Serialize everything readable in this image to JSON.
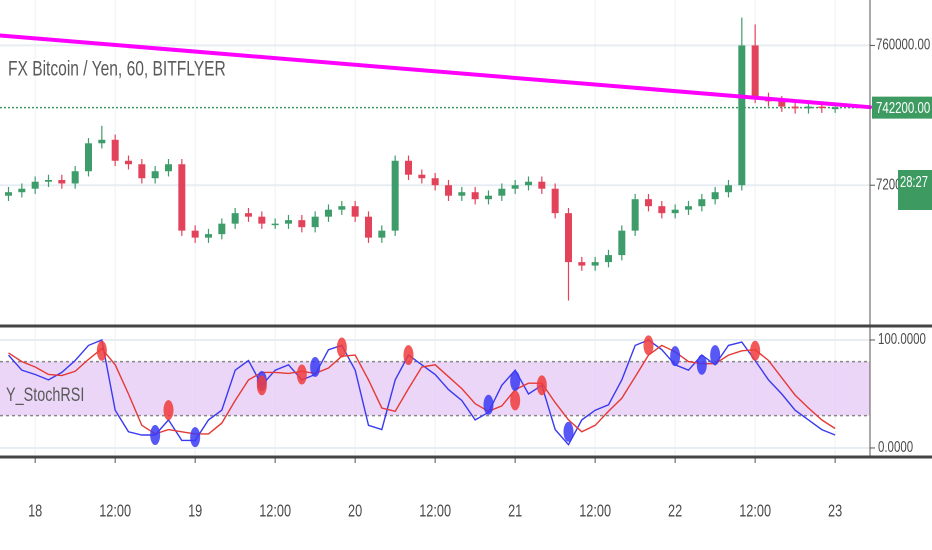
{
  "chart_data": [
    {
      "type": "candlestick",
      "title": "FX Bitcoin / Yen, 60, BITFLYER",
      "categories": [
        null,
        null,
        "18",
        null,
        null,
        null,
        null,
        null,
        "12:00",
        null,
        null,
        null,
        null,
        null,
        "19",
        null,
        null,
        null,
        null,
        null,
        "12:00",
        null,
        null,
        null,
        null,
        null,
        "20",
        null,
        null,
        null,
        null,
        null,
        "12:00",
        null,
        null,
        null,
        null,
        null,
        "21",
        null,
        null,
        null,
        null,
        null,
        "12:00",
        null,
        null,
        null,
        null,
        null,
        "22",
        null,
        null,
        null,
        null,
        null,
        "12:00",
        null,
        null,
        null,
        null,
        null,
        "23"
      ],
      "open": [
        717000,
        718000,
        719000,
        721000,
        721500,
        720500,
        724000,
        732000,
        733000,
        727000,
        726000,
        722000,
        724000,
        726000,
        707000,
        705000,
        706000,
        709000,
        712000,
        711000,
        709000,
        709000,
        710000,
        708000,
        711000,
        713000,
        714000,
        711000,
        705000,
        707000,
        727000,
        723000,
        722000,
        720000,
        717000,
        718000,
        716000,
        717000,
        719000,
        720000,
        721000,
        719000,
        712000,
        698000,
        697000,
        698000,
        700000,
        707000,
        716000,
        714000,
        712000,
        713000,
        714000,
        716000,
        718000,
        720000,
        760000,
        745000,
        744000,
        742500,
        742000,
        742500,
        742200
      ],
      "high": [
        719500,
        720500,
        722500,
        723000,
        723000,
        725500,
        733500,
        737000,
        734500,
        728500,
        727500,
        725500,
        727500,
        727500,
        708500,
        707500,
        710500,
        713500,
        713500,
        712500,
        710500,
        711500,
        711500,
        712500,
        714500,
        715500,
        715500,
        712500,
        708500,
        728500,
        728500,
        724500,
        723500,
        721500,
        719500,
        719500,
        718500,
        720500,
        721500,
        722500,
        722500,
        720500,
        713500,
        699500,
        699500,
        701500,
        708500,
        717500,
        717500,
        715500,
        714500,
        715500,
        717500,
        719500,
        721500,
        768000,
        766000,
        746500,
        745500,
        744000,
        744000,
        744000,
        743700
      ],
      "low": [
        715500,
        716500,
        717500,
        719500,
        719000,
        719000,
        722500,
        730500,
        725500,
        724500,
        720500,
        720500,
        722500,
        705500,
        703500,
        703500,
        704500,
        707500,
        709500,
        707500,
        707500,
        707500,
        706500,
        706500,
        709500,
        711500,
        709500,
        703500,
        703500,
        705500,
        721500,
        720500,
        718500,
        715500,
        715500,
        714500,
        714500,
        715500,
        717500,
        718500,
        717500,
        710500,
        687000,
        695500,
        695500,
        696500,
        698500,
        705500,
        712500,
        710500,
        710500,
        711500,
        712500,
        714500,
        716500,
        718500,
        743500,
        742500,
        741000,
        740500,
        740500,
        740700,
        740700
      ],
      "close": [
        718000,
        719000,
        721000,
        721500,
        720500,
        724000,
        732000,
        733000,
        727000,
        726000,
        722000,
        724000,
        726000,
        707000,
        705000,
        706000,
        709000,
        712000,
        711000,
        709000,
        709000,
        710000,
        708000,
        711000,
        713000,
        714000,
        711000,
        705000,
        707000,
        727000,
        723000,
        722000,
        720000,
        717000,
        718000,
        716000,
        717000,
        719000,
        720000,
        721000,
        719000,
        712000,
        698000,
        697000,
        698000,
        700000,
        707000,
        716000,
        714000,
        712000,
        713000,
        714000,
        716000,
        718000,
        720000,
        760000,
        745000,
        744000,
        742500,
        742000,
        742500,
        742200,
        742200
      ],
      "up_color": "#3e9c6a",
      "down_color": "#e2435a",
      "ylim": [
        680000,
        773000
      ],
      "yticks": [
        {
          "value": 720000,
          "label": "720000.00"
        },
        {
          "value": 760000,
          "label": "760000.00"
        }
      ],
      "grid": true,
      "trendline": {
        "color": "#ff00ff",
        "x": [
          0,
          62
        ],
        "values": [
          762650,
          743150
        ]
      },
      "last_price": {
        "value": 742200,
        "label": "742200.00",
        "color": "#3d9b62"
      },
      "countdown": "28:27"
    },
    {
      "type": "line",
      "title": "Y_StochRSI",
      "ylim": [
        -6.5,
        112
      ],
      "yticks": [
        {
          "value": 0,
          "label": "0.0000"
        },
        {
          "value": 100,
          "label": "100.0000"
        }
      ],
      "band": [
        30,
        80
      ],
      "band_color": "#e6c8f5",
      "series": [
        {
          "color": "#3a3af0",
          "values": [
            86,
            72,
            68,
            63,
            70,
            81,
            95,
            100,
            35,
            15,
            12,
            12,
            26,
            7,
            7,
            26,
            35,
            72,
            81,
            58,
            72,
            77,
            63,
            68,
            91,
            95,
            72,
            21,
            17,
            63,
            86,
            77,
            68,
            54,
            44,
            26,
            33,
            58,
            72,
            50,
            58,
            17,
            3,
            26,
            35,
            40,
            63,
            95,
            100,
            91,
            77,
            72,
            86,
            77,
            95,
            98,
            81,
            63,
            50,
            35,
            26,
            17,
            12
          ]
        },
        {
          "color": "#e53935",
          "values": [
            88,
            80,
            75,
            68,
            67,
            71,
            82,
            92,
            77,
            50,
            21,
            13,
            17,
            15,
            13,
            13,
            23,
            44,
            63,
            70,
            70,
            69,
            71,
            69,
            74,
            85,
            86,
            63,
            37,
            34,
            55,
            75,
            77,
            66,
            55,
            41,
            34,
            39,
            54,
            60,
            60,
            42,
            26,
            15,
            21,
            34,
            46,
            66,
            86,
            95,
            89,
            80,
            78,
            78,
            86,
            90,
            91,
            81,
            65,
            49,
            37,
            26,
            18
          ]
        }
      ],
      "markers": [
        {
          "color": "#3b3bf5",
          "x": [
            11,
            14,
            19,
            23,
            36,
            38,
            42,
            50,
            52,
            53
          ],
          "values": [
            12,
            10,
            62,
            75,
            40,
            62,
            15,
            85,
            77,
            86
          ]
        },
        {
          "color": "#f03c3c",
          "x": [
            7,
            12,
            19,
            22,
            25,
            30,
            38,
            40,
            48,
            56
          ],
          "values": [
            90,
            35,
            58,
            68,
            93,
            86,
            44,
            58,
            95,
            90
          ]
        }
      ]
    }
  ]
}
